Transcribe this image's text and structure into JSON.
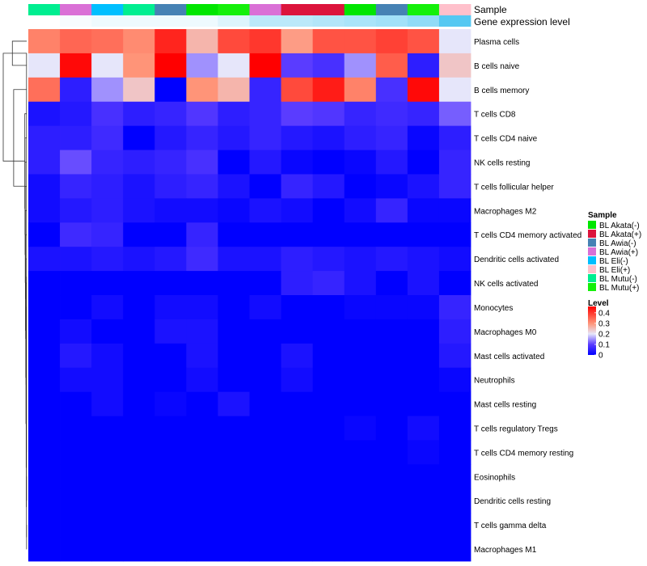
{
  "chart_data": {
    "type": "heatmap",
    "annotation_labels": [
      "Sample",
      "Gene expression level"
    ],
    "columns": [
      "BL Mutu(-)",
      "BL Awia(+)",
      "BL Eli(-)",
      "BL Mutu(-)",
      "BL Awia(-)",
      "BL Akata(-)",
      "BL Mutu(+)",
      "BL Awia(+)",
      "BL Akata(+)",
      "BL Akata(+)",
      "BL Akata(-)",
      "BL Awia(-)",
      "BL Mutu(+)",
      "BL Eli(+)"
    ],
    "rows": [
      "Plasma cells",
      "B cells naive",
      "B cells memory",
      "T cells CD8",
      "T cells CD4 naive",
      "NK cells resting",
      "T cells follicular helper",
      "Macrophages M2",
      "T cells CD4 memory activated",
      "Dendritic cells activated",
      "NK cells activated",
      "Monocytes",
      "Macrophages M0",
      "Mast cells activated",
      "Neutrophils",
      "Mast cells resting",
      "T cells regulatory  Tregs",
      "T cells CD4 memory resting",
      "Eosinophils",
      "Dendritic cells resting",
      "T cells gamma delta",
      "Macrophages M1"
    ],
    "values": [
      [
        0.32,
        0.35,
        0.34,
        0.31,
        0.42,
        0.26,
        0.38,
        0.4,
        0.29,
        0.37,
        0.37,
        0.39,
        0.37,
        0.2
      ],
      [
        0.2,
        0.45,
        0.2,
        0.3,
        0.46,
        0.15,
        0.2,
        0.46,
        0.1,
        0.08,
        0.15,
        0.36,
        0.05,
        0.24
      ],
      [
        0.34,
        0.05,
        0.15,
        0.24,
        0.0,
        0.3,
        0.26,
        0.06,
        0.38,
        0.43,
        0.32,
        0.08,
        0.45,
        0.2
      ],
      [
        0.03,
        0.04,
        0.08,
        0.05,
        0.06,
        0.09,
        0.05,
        0.06,
        0.1,
        0.09,
        0.06,
        0.07,
        0.06,
        0.12
      ],
      [
        0.05,
        0.05,
        0.07,
        0.0,
        0.04,
        0.06,
        0.04,
        0.06,
        0.04,
        0.03,
        0.05,
        0.06,
        0.01,
        0.05
      ],
      [
        0.05,
        0.11,
        0.06,
        0.05,
        0.06,
        0.08,
        0.0,
        0.04,
        0.01,
        0.0,
        0.01,
        0.04,
        0.0,
        0.06
      ],
      [
        0.02,
        0.06,
        0.05,
        0.03,
        0.05,
        0.06,
        0.03,
        0.0,
        0.06,
        0.04,
        0.0,
        0.01,
        0.03,
        0.06
      ],
      [
        0.02,
        0.04,
        0.05,
        0.03,
        0.02,
        0.02,
        0.01,
        0.03,
        0.02,
        0.0,
        0.02,
        0.06,
        0.01,
        0.01
      ],
      [
        0.0,
        0.07,
        0.06,
        0.0,
        0.0,
        0.06,
        0.0,
        0.0,
        0.0,
        0.0,
        0.0,
        0.0,
        0.0,
        0.0
      ],
      [
        0.03,
        0.03,
        0.04,
        0.03,
        0.04,
        0.07,
        0.03,
        0.03,
        0.05,
        0.04,
        0.03,
        0.04,
        0.03,
        0.02
      ],
      [
        0.0,
        0.0,
        0.0,
        0.0,
        0.0,
        0.0,
        0.0,
        0.0,
        0.05,
        0.06,
        0.03,
        0.0,
        0.03,
        0.0
      ],
      [
        0.0,
        0.0,
        0.02,
        0.0,
        0.02,
        0.02,
        0.0,
        0.02,
        0.0,
        0.0,
        0.01,
        0.01,
        0.01,
        0.06
      ],
      [
        0.0,
        0.02,
        0.0,
        0.0,
        0.03,
        0.03,
        0.0,
        0.0,
        0.0,
        0.0,
        0.0,
        0.0,
        0.0,
        0.05
      ],
      [
        0.0,
        0.04,
        0.02,
        0.0,
        0.0,
        0.03,
        0.0,
        0.0,
        0.03,
        0.0,
        0.0,
        0.0,
        0.0,
        0.04
      ],
      [
        0.0,
        0.02,
        0.02,
        0.0,
        0.0,
        0.02,
        0.0,
        0.0,
        0.02,
        0.0,
        0.0,
        0.0,
        0.0,
        0.01
      ],
      [
        0.0,
        0.0,
        0.02,
        0.0,
        0.01,
        0.0,
        0.03,
        0.0,
        0.0,
        0.0,
        0.0,
        0.0,
        0.0,
        0.0
      ],
      [
        0.0,
        0.0,
        0.0,
        0.0,
        0.0,
        0.0,
        0.0,
        0.0,
        0.0,
        0.0,
        0.01,
        0.0,
        0.02,
        0.0
      ],
      [
        0.0,
        0.0,
        0.0,
        0.0,
        0.0,
        0.0,
        0.0,
        0.0,
        0.0,
        0.0,
        0.0,
        0.0,
        0.01,
        0.0
      ],
      [
        0.0,
        0.0,
        0.0,
        0.0,
        0.0,
        0.0,
        0.0,
        0.0,
        0.0,
        0.0,
        0.0,
        0.0,
        0.0,
        0.0
      ],
      [
        0.0,
        0.0,
        0.0,
        0.0,
        0.0,
        0.0,
        0.0,
        0.0,
        0.0,
        0.0,
        0.0,
        0.0,
        0.0,
        0.0
      ],
      [
        0.0,
        0.0,
        0.0,
        0.0,
        0.0,
        0.0,
        0.0,
        0.0,
        0.0,
        0.0,
        0.0,
        0.0,
        0.0,
        0.0
      ],
      [
        0.0,
        0.0,
        0.0,
        0.0,
        0.0,
        0.0,
        0.0,
        0.0,
        0.0,
        0.0,
        0.0,
        0.0,
        0.0,
        0.0
      ]
    ],
    "gene_expression_level": [
      0.0,
      0.05,
      0.1,
      0.1,
      0.1,
      0.1,
      0.2,
      0.4,
      0.4,
      0.45,
      0.5,
      0.55,
      0.65,
      1.0
    ],
    "gene_expression_colors": [
      "#ffffff",
      "#55c8f2"
    ],
    "sample_legend": {
      "title": "Sample",
      "items": [
        {
          "label": "BL Akata(-)",
          "color": "#00e600"
        },
        {
          "label": "BL Akata(+)",
          "color": "#dc143c"
        },
        {
          "label": "BL Awia(-)",
          "color": "#4682b4"
        },
        {
          "label": "BL Awia(+)",
          "color": "#da70d6"
        },
        {
          "label": "BL Eli(-)",
          "color": "#00bfff"
        },
        {
          "label": "BL Eli(+)",
          "color": "#ffc0cb"
        },
        {
          "label": "BL Mutu(-)",
          "color": "#00ee90"
        },
        {
          "label": "BL Mutu(+)",
          "color": "#14f00a"
        }
      ]
    },
    "level_legend": {
      "title": "Level",
      "ticks": [
        "0.4",
        "0.3",
        "0.2",
        "0.1",
        "0"
      ],
      "tick_values": [
        0.4,
        0.3,
        0.2,
        0.1,
        0.0
      ],
      "range": [
        0,
        0.46
      ]
    },
    "color_scale": {
      "stops": [
        {
          "v": 0.0,
          "color": "#0000ff"
        },
        {
          "v": 0.1,
          "color": "#5a3cff"
        },
        {
          "v": 0.2,
          "color": "#e6e6fa"
        },
        {
          "v": 0.3,
          "color": "#ff9478"
        },
        {
          "v": 0.46,
          "color": "#ff0000"
        }
      ]
    },
    "dendrogram": {
      "merges": [
        [
          0,
          1,
          0.55
        ],
        [
          20,
          21,
          0.004
        ],
        [
          19,
          22,
          0.006
        ],
        [
          18,
          23,
          0.008
        ],
        [
          17,
          24,
          0.01
        ],
        [
          16,
          25,
          0.013
        ],
        [
          15,
          26,
          0.016
        ],
        [
          14,
          27,
          0.02
        ],
        [
          13,
          28,
          0.024
        ],
        [
          12,
          29,
          0.028
        ],
        [
          11,
          30,
          0.032
        ],
        [
          10,
          31,
          0.036
        ],
        [
          9,
          32,
          0.04
        ],
        [
          8,
          33,
          0.045
        ],
        [
          7,
          34,
          0.05
        ],
        [
          6,
          35,
          0.055
        ],
        [
          5,
          36,
          0.06
        ],
        [
          4,
          37,
          0.066
        ],
        [
          3,
          38,
          0.072
        ],
        [
          2,
          39,
          0.5
        ],
        [
          22,
          40,
          0.9
        ]
      ]
    }
  }
}
